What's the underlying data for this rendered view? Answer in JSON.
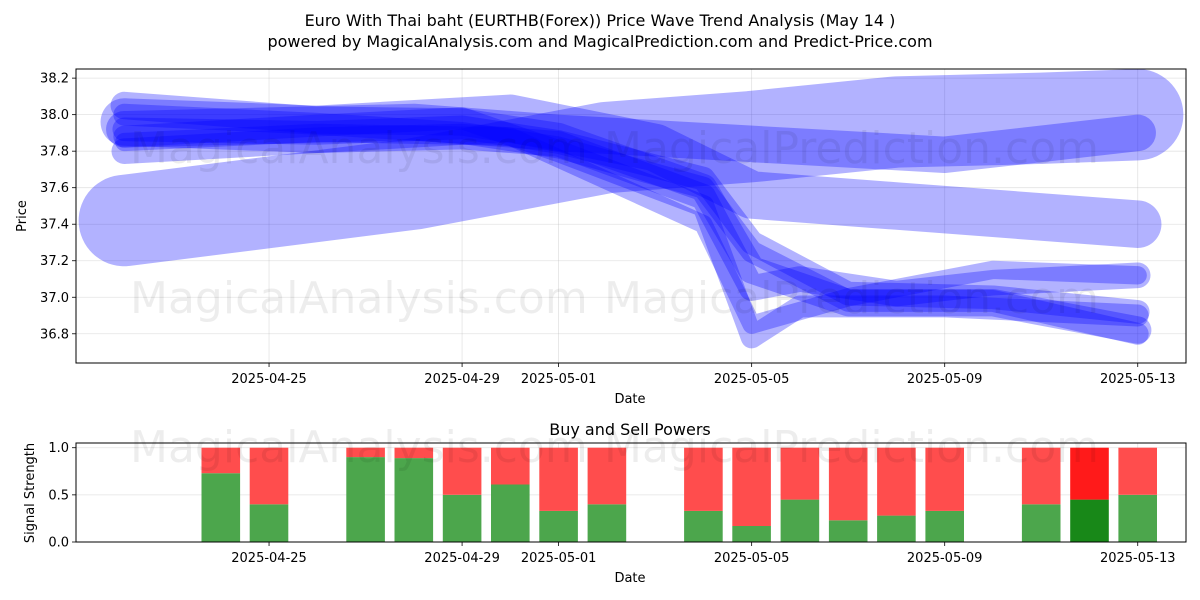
{
  "title_line1": "Euro With Thai baht (EURTHB(Forex)) Price Wave Trend Analysis (May 14 )",
  "title_line2": "powered by MagicalAnalysis.com and MagicalPrediction.com and Predict-Price.com",
  "watermarks": [
    "MagicalAnalysis.com",
    "MagicalPrediction.com"
  ],
  "chart_data": [
    {
      "type": "area",
      "title": "",
      "xlabel": "Date",
      "ylabel": "Price",
      "xlim": [
        "2025-04-21",
        "2025-05-14"
      ],
      "ylim": [
        36.64,
        38.25
      ],
      "x_ticks": [
        "2025-04-25",
        "2025-04-29",
        "2025-05-01",
        "2025-05-05",
        "2025-05-09",
        "2025-05-13"
      ],
      "y_ticks": [
        36.8,
        37.0,
        37.2,
        37.4,
        37.6,
        37.8,
        38.0,
        38.2
      ],
      "grid": true,
      "band_color": "#0000ff",
      "series": [
        {
          "x": [
            "2025-04-22",
            "2025-04-28",
            "2025-05-02",
            "2025-05-05",
            "2025-05-08",
            "2025-05-11",
            "2025-05-13"
          ],
          "y": [
            37.42,
            37.62,
            37.82,
            37.88,
            37.96,
            37.98,
            38.0
          ],
          "width": 0.5
        },
        {
          "x": [
            "2025-04-22",
            "2025-04-26",
            "2025-04-30",
            "2025-05-03",
            "2025-05-05",
            "2025-05-08",
            "2025-05-13"
          ],
          "y": [
            37.96,
            37.92,
            37.98,
            37.82,
            37.56,
            37.5,
            37.4
          ],
          "width": 0.26
        },
        {
          "x": [
            "2025-04-22",
            "2025-04-26",
            "2025-04-29",
            "2025-05-01",
            "2025-05-04",
            "2025-05-05",
            "2025-05-07",
            "2025-05-10",
            "2025-05-13"
          ],
          "y": [
            38.05,
            37.97,
            37.96,
            37.88,
            37.6,
            37.15,
            36.97,
            36.97,
            36.82
          ],
          "width": 0.15
        },
        {
          "x": [
            "2025-04-22",
            "2025-04-26",
            "2025-04-29",
            "2025-05-01",
            "2025-05-04",
            "2025-05-05",
            "2025-05-06",
            "2025-05-08",
            "2025-05-10",
            "2025-05-13"
          ],
          "y": [
            37.8,
            37.86,
            37.88,
            37.84,
            37.55,
            37.05,
            37.1,
            37.02,
            37.08,
            37.12
          ],
          "width": 0.14
        },
        {
          "x": [
            "2025-04-22",
            "2025-04-26",
            "2025-04-29",
            "2025-05-01",
            "2025-05-04",
            "2025-05-05",
            "2025-05-07",
            "2025-05-10",
            "2025-05-13"
          ],
          "y": [
            37.92,
            37.9,
            37.93,
            37.85,
            37.65,
            37.3,
            37.02,
            37.0,
            36.92
          ],
          "width": 0.13
        },
        {
          "x": [
            "2025-04-22",
            "2025-04-26",
            "2025-04-29",
            "2025-05-01",
            "2025-05-04",
            "2025-05-05",
            "2025-05-06",
            "2025-05-09",
            "2025-05-13"
          ],
          "y": [
            37.88,
            37.94,
            37.98,
            37.8,
            37.5,
            36.78,
            36.95,
            36.95,
            36.9
          ],
          "width": 0.12
        },
        {
          "x": [
            "2025-04-22",
            "2025-04-26",
            "2025-04-29",
            "2025-05-01",
            "2025-05-04",
            "2025-05-05",
            "2025-05-07",
            "2025-05-10",
            "2025-05-13"
          ],
          "y": [
            38.0,
            37.95,
            37.9,
            37.82,
            37.6,
            37.25,
            36.98,
            36.98,
            36.8
          ],
          "width": 0.12
        },
        {
          "x": [
            "2025-04-22",
            "2025-04-28",
            "2025-05-01",
            "2025-05-05",
            "2025-05-09",
            "2025-05-13"
          ],
          "y": [
            37.92,
            37.96,
            37.9,
            37.84,
            37.78,
            37.9
          ],
          "width": 0.2
        },
        {
          "x": [
            "2025-04-22",
            "2025-04-26",
            "2025-04-30",
            "2025-05-04",
            "2025-05-05",
            "2025-05-07",
            "2025-05-10",
            "2025-05-13"
          ],
          "y": [
            37.85,
            37.9,
            37.88,
            37.4,
            36.85,
            37.0,
            37.15,
            37.12
          ],
          "width": 0.1
        }
      ]
    },
    {
      "type": "bar",
      "title": "Buy and Sell Powers",
      "xlabel": "Date",
      "ylabel": "Signal Strength",
      "xlim": [
        "2025-04-21",
        "2025-05-14"
      ],
      "ylim": [
        0,
        1.05
      ],
      "x_ticks": [
        "2025-04-25",
        "2025-04-29",
        "2025-05-01",
        "2025-05-05",
        "2025-05-09",
        "2025-05-13"
      ],
      "y_ticks": [
        "0.0",
        "0.5",
        "1.0"
      ],
      "grid": true,
      "buy_color": "#4ca64c",
      "sell_color": "#ff4d4d",
      "highlight_buy_color": "#188818",
      "highlight_sell_color": "#ff1a1a",
      "series": [
        {
          "name": "Buy",
          "x": [
            "2025-04-24",
            "2025-04-25",
            "2025-04-27",
            "2025-04-28",
            "2025-04-29",
            "2025-04-30",
            "2025-05-01",
            "2025-05-02",
            "2025-05-04",
            "2025-05-05",
            "2025-05-06",
            "2025-05-07",
            "2025-05-08",
            "2025-05-09",
            "2025-05-11",
            "2025-05-12",
            "2025-05-13"
          ],
          "values": [
            0.73,
            0.4,
            0.9,
            0.89,
            0.5,
            0.61,
            0.33,
            0.4,
            0.33,
            0.17,
            0.45,
            0.23,
            0.28,
            0.33,
            0.4,
            0.45,
            0.5
          ]
        },
        {
          "name": "Sell",
          "x": [
            "2025-04-24",
            "2025-04-25",
            "2025-04-27",
            "2025-04-28",
            "2025-04-29",
            "2025-04-30",
            "2025-05-01",
            "2025-05-02",
            "2025-05-04",
            "2025-05-05",
            "2025-05-06",
            "2025-05-07",
            "2025-05-08",
            "2025-05-09",
            "2025-05-11",
            "2025-05-12",
            "2025-05-13"
          ],
          "values": [
            0.27,
            0.6,
            0.1,
            0.11,
            0.5,
            0.39,
            0.67,
            0.6,
            0.67,
            0.83,
            0.55,
            0.77,
            0.72,
            0.67,
            0.6,
            0.55,
            0.5
          ]
        }
      ],
      "highlight_date": "2025-05-12"
    }
  ]
}
